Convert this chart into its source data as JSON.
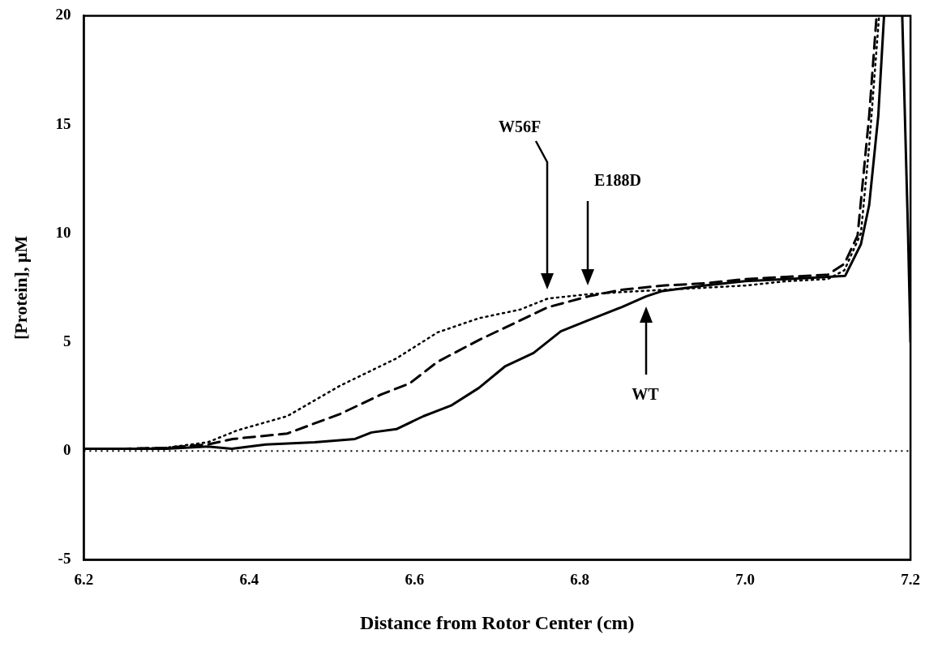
{
  "chart_data": {
    "type": "line",
    "xlabel": "Distance from Rotor Center (cm)",
    "ylabel": "[Protein], μM",
    "xlim": [
      6.2,
      7.2
    ],
    "xticks": [
      6.2,
      6.4,
      6.6,
      6.8,
      {
        "value": 7.0,
        "label": "7.0"
      },
      7.2
    ],
    "ylim": [
      -5,
      20
    ],
    "yticks": [
      -5,
      0,
      5,
      10,
      15,
      20
    ],
    "grid": false,
    "legend": false,
    "marker": "none",
    "series": [
      {
        "color": "#000000",
        "line_style": "solid",
        "x": [
          6.2,
          6.25,
          6.3,
          6.35,
          6.379,
          6.42,
          6.479,
          6.528,
          6.548,
          6.578,
          6.611,
          6.645,
          6.678,
          6.71,
          6.744,
          6.777,
          6.81,
          6.85,
          6.88,
          6.9,
          6.95,
          7.0,
          7.05,
          7.1,
          7.121,
          7.14,
          7.15,
          7.161,
          7.168,
          7.18,
          7.19,
          7.197,
          7.2
        ],
        "values": [
          0.1,
          0.1,
          0.1,
          0.2,
          0.1,
          0.3,
          0.4,
          0.55,
          0.85,
          1.0,
          1.6,
          2.1,
          2.9,
          3.9,
          4.5,
          5.5,
          6.0,
          6.6,
          7.1,
          7.35,
          7.6,
          7.8,
          7.9,
          8.0,
          8.05,
          9.5,
          11.3,
          15.4,
          20,
          null,
          20,
          10,
          5
        ]
      },
      {
        "color": "#000000",
        "line_style": "dashed",
        "x": [
          6.2,
          6.25,
          6.3,
          6.35,
          6.38,
          6.446,
          6.51,
          6.56,
          6.594,
          6.628,
          6.678,
          6.728,
          6.761,
          6.81,
          6.85,
          6.9,
          6.95,
          7.0,
          7.05,
          7.1,
          7.12,
          7.136,
          7.15,
          7.159
        ],
        "values": [
          0.1,
          0.1,
          0.15,
          0.3,
          0.55,
          0.8,
          1.7,
          2.6,
          3.1,
          4.1,
          5.1,
          6.0,
          6.6,
          7.1,
          7.4,
          7.6,
          7.7,
          7.9,
          8.0,
          8.1,
          8.6,
          9.9,
          15.4,
          20
        ]
      },
      {
        "color": "#000000",
        "line_style": "dotted",
        "x": [
          6.2,
          6.25,
          6.3,
          6.35,
          6.386,
          6.446,
          6.51,
          6.578,
          6.628,
          6.678,
          6.728,
          6.761,
          6.81,
          6.85,
          6.9,
          6.95,
          7.0,
          7.05,
          7.1,
          7.12,
          7.14,
          7.15,
          7.162
        ],
        "values": [
          0.1,
          0.1,
          0.15,
          0.4,
          0.95,
          1.6,
          3.0,
          4.25,
          5.45,
          6.1,
          6.5,
          7.0,
          7.2,
          7.3,
          7.4,
          7.5,
          7.6,
          7.8,
          7.9,
          8.3,
          10,
          14,
          20
        ]
      }
    ],
    "ref_lines": [
      {
        "axis": "y",
        "value": 0,
        "line_style": "dotted",
        "color": "#000000"
      }
    ],
    "annotations": [
      "W56F",
      "E188D",
      "WT"
    ]
  }
}
